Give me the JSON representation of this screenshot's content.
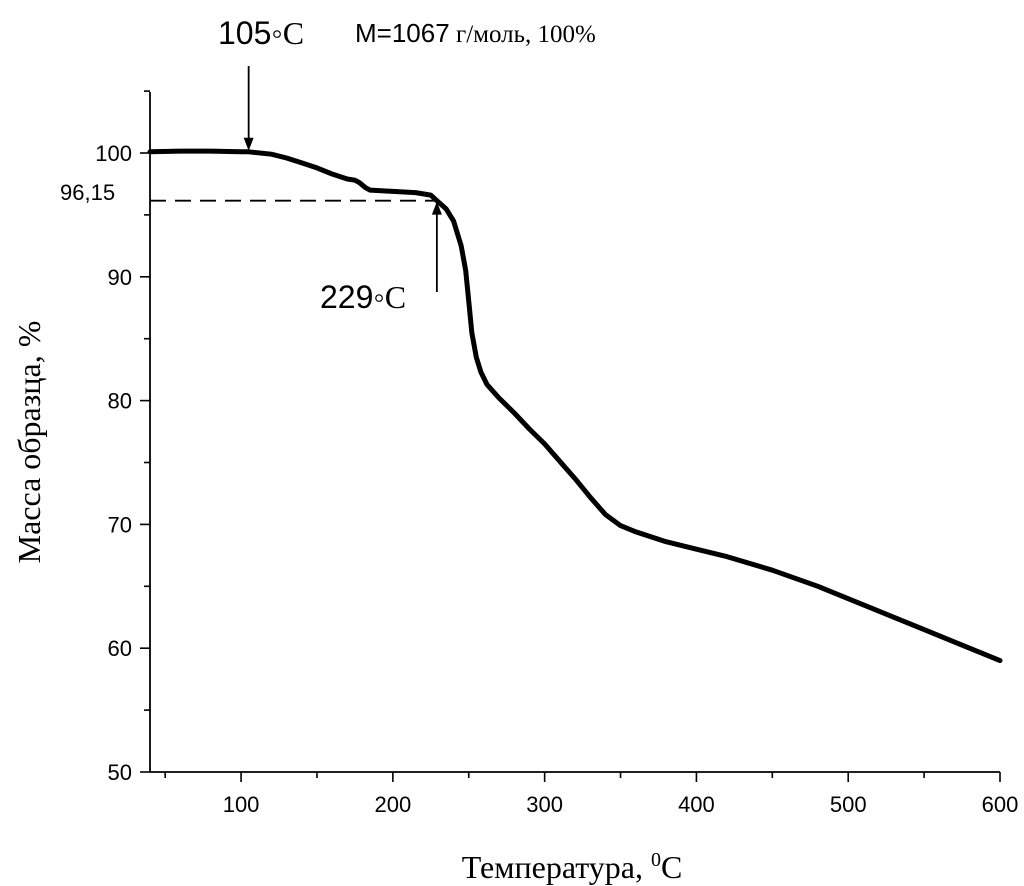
{
  "chart_data": {
    "type": "line",
    "title": "",
    "xlabel": "Температура, ",
    "xlabel_sup": "0",
    "xlabel_unit": "С",
    "ylabel": "Масса образца, %",
    "xlim": [
      40,
      600
    ],
    "ylim": [
      50,
      105
    ],
    "xticks": [
      100,
      200,
      300,
      400,
      500,
      600
    ],
    "yticks": [
      50,
      60,
      70,
      80,
      90,
      100
    ],
    "grid": false,
    "series": [
      {
        "x": [
          40,
          60,
          80,
          100,
          105,
          120,
          130,
          140,
          150,
          160,
          170,
          175,
          178,
          182,
          185,
          200,
          215,
          225,
          229,
          235,
          240,
          245,
          248,
          250,
          252,
          255,
          258,
          262,
          270,
          280,
          290,
          300,
          310,
          320,
          330,
          340,
          350,
          360,
          380,
          400,
          420,
          450,
          480,
          500,
          520,
          550,
          580,
          600
        ],
        "y": [
          100.1,
          100.15,
          100.15,
          100.1,
          100.1,
          99.9,
          99.6,
          99.2,
          98.8,
          98.3,
          97.9,
          97.8,
          97.6,
          97.2,
          97.0,
          96.9,
          96.8,
          96.6,
          96.15,
          95.5,
          94.5,
          92.5,
          90.5,
          88.0,
          85.5,
          83.5,
          82.3,
          81.3,
          80.2,
          79.0,
          77.7,
          76.5,
          75.1,
          73.7,
          72.2,
          70.8,
          69.9,
          69.4,
          68.6,
          68.0,
          67.4,
          66.3,
          65.0,
          64.0,
          63.0,
          61.5,
          60.0,
          59.0
        ]
      }
    ],
    "annotations": {
      "top_left": "105",
      "top_left_unit": "◦С",
      "header_bold": "М=1067",
      "header_rest": " г/моль, 100%",
      "dash_label": "96,15",
      "mid_label": "229",
      "mid_unit": "◦С"
    },
    "marker_105_x": 105,
    "marker_105_y": 100.1,
    "marker_229_x": 229,
    "marker_229_y": 96.15
  }
}
